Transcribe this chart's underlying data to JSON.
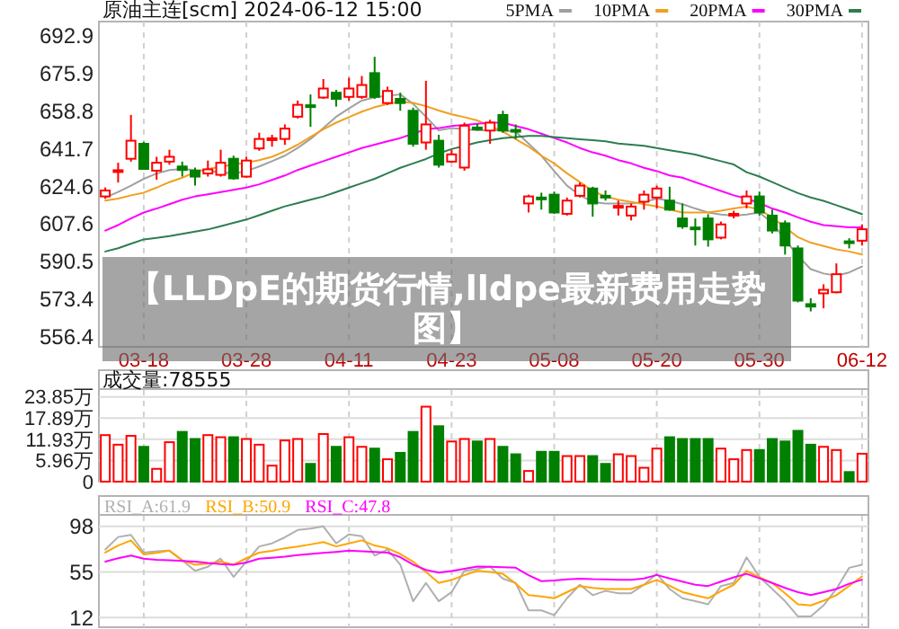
{
  "chart_data": [
    {
      "type": "candlestick",
      "title": "原油主连[scm] 2024-06-12 15:00",
      "categories": [
        null,
        null,
        null,
        "03-18",
        null,
        null,
        null,
        null,
        null,
        null,
        null,
        "03-28",
        null,
        null,
        null,
        null,
        null,
        null,
        null,
        "04-11",
        null,
        null,
        null,
        null,
        null,
        null,
        null,
        "04-23",
        null,
        null,
        null,
        null,
        null,
        null,
        null,
        "05-08",
        null,
        null,
        null,
        null,
        null,
        null,
        null,
        "05-20",
        null,
        null,
        null,
        null,
        null,
        null,
        null,
        "05-30",
        null,
        null,
        null,
        null,
        null,
        null,
        null,
        "06-12"
      ],
      "ohlc": [
        [
          620.0,
          624.1,
          618.9,
          622.7
        ],
        [
          631.5,
          635.3,
          626.3,
          631.9
        ],
        [
          637.1,
          657.0,
          635.8,
          645.3
        ],
        [
          643.9,
          644.8,
          632.3,
          632.5
        ],
        [
          631.7,
          638.0,
          627.6,
          635.3
        ],
        [
          635.8,
          641.2,
          634.4,
          638.0
        ],
        [
          633.6,
          635.8,
          629.0,
          632.0
        ],
        [
          631.7,
          633.1,
          624.9,
          629.0
        ],
        [
          630.4,
          636.3,
          629.0,
          632.3
        ],
        [
          629.8,
          641.2,
          629.0,
          635.3
        ],
        [
          637.1,
          638.5,
          627.6,
          628.2
        ],
        [
          629.0,
          638.0,
          628.5,
          636.3
        ],
        [
          641.8,
          648.9,
          640.7,
          646.1
        ],
        [
          645.9,
          648.0,
          642.6,
          646.4
        ],
        [
          646.1,
          652.7,
          643.4,
          650.8
        ],
        [
          656.2,
          663.5,
          655.4,
          661.6
        ],
        [
          661.4,
          666.3,
          651.6,
          660.8
        ],
        [
          664.9,
          673.3,
          664.3,
          669.0
        ],
        [
          667.1,
          668.4,
          660.8,
          664.3
        ],
        [
          665.2,
          673.9,
          663.5,
          669.0
        ],
        [
          665.2,
          674.7,
          664.3,
          670.6
        ],
        [
          676.0,
          683.4,
          664.3,
          665.2
        ],
        [
          662.4,
          669.8,
          661.6,
          667.9
        ],
        [
          664.3,
          667.1,
          658.9,
          662.4
        ],
        [
          658.9,
          660.3,
          642.6,
          643.9
        ],
        [
          644.5,
          672.5,
          641.2,
          652.7
        ],
        [
          645.3,
          648.0,
          633.1,
          634.4
        ],
        [
          635.8,
          641.2,
          635.3,
          639.1
        ],
        [
          633.1,
          653.5,
          631.7,
          652.1
        ],
        [
          651.3,
          652.9,
          649.9,
          651.0
        ],
        [
          649.9,
          654.8,
          643.9,
          653.5
        ],
        [
          657.0,
          658.9,
          648.9,
          649.9
        ],
        [
          650.2,
          652.7,
          646.1,
          649.4
        ],
        [
          616.8,
          620.8,
          612.7,
          620.0
        ],
        [
          619.5,
          621.7,
          614.0,
          618.9
        ],
        [
          620.8,
          622.2,
          612.1,
          612.7
        ],
        [
          612.1,
          619.5,
          611.3,
          618.1
        ],
        [
          620.3,
          626.3,
          619.5,
          624.9
        ],
        [
          623.6,
          624.4,
          610.8,
          616.8
        ],
        [
          620.3,
          622.7,
          618.1,
          619.8
        ],
        [
          615.1,
          618.1,
          611.3,
          615.7
        ],
        [
          611.3,
          616.8,
          609.1,
          615.4
        ],
        [
          617.6,
          622.7,
          614.0,
          620.8
        ],
        [
          619.5,
          624.9,
          614.6,
          623.6
        ],
        [
          618.1,
          624.4,
          613.5,
          614.0
        ],
        [
          610.0,
          616.8,
          605.3,
          606.4
        ],
        [
          605.9,
          610.0,
          597.7,
          605.3
        ],
        [
          610.0,
          611.9,
          597.2,
          600.5
        ],
        [
          601.3,
          608.6,
          600.5,
          607.3
        ],
        [
          611.6,
          613.5,
          610.0,
          612.1
        ],
        [
          616.8,
          622.7,
          614.6,
          620.0
        ],
        [
          620.0,
          622.2,
          611.3,
          612.7
        ],
        [
          611.3,
          614.0,
          603.2,
          604.5
        ],
        [
          607.8,
          609.1,
          593.6,
          597.7
        ],
        [
          596.4,
          597.7,
          571.9,
          572.7
        ],
        [
          571.1,
          573.8,
          567.8,
          570.0
        ],
        [
          576.0,
          580.1,
          569.2,
          577.6
        ],
        [
          576.5,
          589.6,
          576.0,
          584.7
        ],
        [
          599.6,
          601.0,
          596.4,
          598.8
        ],
        [
          599.9,
          607.3,
          597.7,
          605.1
        ]
      ],
      "colors": [
        "#ff0000",
        "#ff0000",
        "#ff0000",
        "#008000",
        "#ff0000",
        "#ff0000",
        "#008000",
        "#008000",
        "#ff0000",
        "#ff0000",
        "#008000",
        "#ff0000",
        "#ff0000",
        "#ff0000",
        "#ff0000",
        "#ff0000",
        "#008000",
        "#ff0000",
        "#008000",
        "#ff0000",
        "#ff0000",
        "#008000",
        "#ff0000",
        "#008000",
        "#008000",
        "#ff0000",
        "#008000",
        "#ff0000",
        "#ff0000",
        "#008000",
        "#ff0000",
        "#008000",
        "#008000",
        "#ff0000",
        "#008000",
        "#008000",
        "#ff0000",
        "#ff0000",
        "#008000",
        "#008000",
        "#ff0000",
        "#ff0000",
        "#ff0000",
        "#ff0000",
        "#008000",
        "#008000",
        "#008000",
        "#008000",
        "#ff0000",
        "#ff0000",
        "#ff0000",
        "#008000",
        "#008000",
        "#008000",
        "#008000",
        "#008000",
        "#ff0000",
        "#ff0000",
        "#008000",
        "#ff0000"
      ],
      "series": [
        {
          "name": "5PMA",
          "type": "line",
          "color": "#a0a0a0",
          "values": [
            619.5,
            622,
            624.9,
            628,
            630.4,
            632,
            632.5,
            632,
            631.7,
            631,
            630.4,
            631.5,
            633.6,
            636,
            638.5,
            642,
            646.1,
            651,
            656.2,
            660,
            663.5,
            665,
            665.7,
            666.3,
            662,
            656.2,
            650,
            651,
            650.5,
            650,
            650,
            650,
            649.4,
            644,
            638.5,
            631.5,
            624.9,
            620.5,
            617.5,
            616.8,
            616.8,
            616.8,
            617.5,
            619,
            618,
            616.5,
            614.5,
            612.7,
            611.8,
            611.3,
            611.8,
            612.7,
            608,
            600.5,
            593,
            587,
            585,
            584,
            585.5,
            588.2
          ]
        },
        {
          "name": "10PMA",
          "type": "line",
          "color": "#f0a020",
          "values": [
            618.1,
            619,
            620.5,
            621.7,
            624,
            626.5,
            628.5,
            631,
            632.5,
            633.5,
            634.5,
            635.3,
            636.5,
            638,
            640.5,
            643.5,
            647,
            650.5,
            653.5,
            656,
            658.5,
            660.5,
            662,
            663,
            662.5,
            661,
            659,
            657.3,
            656,
            654.5,
            652,
            649.5,
            646,
            642.6,
            638.5,
            635,
            630.5,
            626.5,
            622.5,
            620,
            618.5,
            617.5,
            616.5,
            615.5,
            614,
            612.7,
            612.7,
            612.7,
            613.5,
            614.5,
            615.4,
            614,
            610.5,
            606,
            601.5,
            599,
            597.5,
            596,
            595,
            593.6
          ]
        },
        {
          "name": "20PMA",
          "type": "line",
          "color": "#ff00ff",
          "values": [
            604.5,
            607,
            610,
            612.7,
            614.5,
            616.5,
            618.5,
            620,
            621,
            622,
            623,
            624,
            625.5,
            627.5,
            629.5,
            632,
            634,
            636,
            638,
            640,
            642,
            643.5,
            645,
            646.5,
            648.5,
            650.5,
            651,
            652,
            652.5,
            653,
            653.5,
            653.5,
            652,
            650.5,
            648.5,
            646.5,
            644.5,
            642,
            640,
            638.5,
            636.5,
            635,
            633,
            631.5,
            629.5,
            628.5,
            626.5,
            624.5,
            622.5,
            620.5,
            619,
            617,
            614.5,
            612.7,
            610.5,
            608.5,
            607,
            606.5,
            606,
            606
          ]
        },
        {
          "name": "30PMA",
          "type": "line",
          "color": "#2e7d4f",
          "values": [
            595,
            596.5,
            598.5,
            600.5,
            601.2,
            602,
            603,
            604,
            605,
            606.5,
            608,
            609.5,
            611.5,
            613.5,
            615.5,
            617,
            618.5,
            620,
            622,
            624,
            626,
            628,
            630.5,
            633,
            635,
            637,
            639.5,
            641.5,
            643,
            644.5,
            645.5,
            646.5,
            647,
            647.5,
            647.5,
            647,
            646.5,
            646,
            645.5,
            645,
            644,
            643.5,
            643,
            642,
            641,
            640,
            639,
            637.5,
            636,
            634.5,
            631,
            629,
            626.5,
            624,
            621.5,
            619.5,
            618,
            616,
            614,
            612
          ]
        }
      ],
      "ylim": [
        551.7,
        699.4
      ],
      "yticks": [
        556.4,
        573.4,
        590.5,
        607.6,
        624.6,
        641.7,
        658.8,
        675.9,
        692.9
      ],
      "grid": "x",
      "legend": "top right",
      "annotations": [
        "【LLDpE的期货行情,lldpe最新费用走势图】"
      ]
    },
    {
      "type": "bar",
      "title": "成交量:78555",
      "categories": [
        null,
        null,
        null,
        null,
        null,
        null,
        null,
        null,
        null,
        null,
        null,
        null,
        null,
        null,
        null,
        null,
        null,
        null,
        null,
        null,
        null,
        null,
        null,
        null,
        null,
        null,
        null,
        null,
        null,
        null,
        null,
        null,
        null,
        null,
        null,
        null,
        null,
        null,
        null,
        null,
        null,
        null,
        null,
        null,
        null,
        null,
        null,
        null,
        null,
        null,
        null,
        null,
        null,
        null,
        null,
        null,
        null,
        null,
        null,
        null
      ],
      "values": [
        13.1,
        10.4,
        12.9,
        9.8,
        3.6,
        11.1,
        14.0,
        12.0,
        13.1,
        12.5,
        12.5,
        12.0,
        10.4,
        4.5,
        11.6,
        12.0,
        5.0,
        13.4,
        9.8,
        12.5,
        9.8,
        9.3,
        6.3,
        8.1,
        14.0,
        21.1,
        15.6,
        11.3,
        12.0,
        11.3,
        12.0,
        9.8,
        7.7,
        3.0,
        8.4,
        8.4,
        7.2,
        7.2,
        7.2,
        5.0,
        7.7,
        7.2,
        3.9,
        9.3,
        12.5,
        12.0,
        12.0,
        12.0,
        9.3,
        6.3,
        8.9,
        8.9,
        12.0,
        11.3,
        14.3,
        10.4,
        9.8,
        8.9,
        2.7,
        7.86
      ],
      "colors": [
        "#ff0000",
        "#ff0000",
        "#ff0000",
        "#008000",
        "#ff0000",
        "#ff0000",
        "#008000",
        "#008000",
        "#ff0000",
        "#ff0000",
        "#008000",
        "#ff0000",
        "#ff0000",
        "#ff0000",
        "#ff0000",
        "#ff0000",
        "#008000",
        "#ff0000",
        "#008000",
        "#ff0000",
        "#ff0000",
        "#008000",
        "#ff0000",
        "#008000",
        "#008000",
        "#ff0000",
        "#008000",
        "#ff0000",
        "#ff0000",
        "#008000",
        "#ff0000",
        "#008000",
        "#008000",
        "#ff0000",
        "#008000",
        "#008000",
        "#ff0000",
        "#ff0000",
        "#008000",
        "#008000",
        "#ff0000",
        "#ff0000",
        "#ff0000",
        "#ff0000",
        "#008000",
        "#008000",
        "#008000",
        "#008000",
        "#ff0000",
        "#ff0000",
        "#ff0000",
        "#008000",
        "#008000",
        "#008000",
        "#008000",
        "#008000",
        "#ff0000",
        "#ff0000",
        "#008000",
        "#ff0000"
      ],
      "ylim": [
        0,
        25.8
      ],
      "yticks": [
        0,
        {
          "value": 5.96,
          "label": "5.96万"
        },
        {
          "value": 11.93,
          "label": "11.93万"
        },
        {
          "value": 17.89,
          "label": "17.89万"
        },
        {
          "value": 23.85,
          "label": "23.85万"
        }
      ],
      "grid": true,
      "tick_labels": "y"
    },
    {
      "type": "line",
      "categories": [
        null,
        null,
        null,
        null,
        null,
        null,
        null,
        null,
        null,
        null,
        null,
        null,
        null,
        null,
        null,
        null,
        null,
        null,
        null,
        null,
        null,
        null,
        null,
        null,
        null,
        null,
        null,
        null,
        null,
        null,
        null,
        null,
        null,
        null,
        null,
        null,
        null,
        null,
        null,
        null,
        null,
        null,
        null,
        null,
        null,
        null,
        null,
        null,
        null,
        null,
        null,
        null,
        null,
        null,
        null,
        null,
        null,
        null,
        null,
        null
      ],
      "series": [
        {
          "name": "RSI_A:61.9",
          "color": "#b0b0b0",
          "values": [
            76.2,
            88,
            90,
            73.3,
            74.5,
            75.1,
            66,
            56.1,
            60,
            67.6,
            50.4,
            65,
            79.1,
            82,
            87.7,
            94.6,
            96,
            98,
            82,
            90.5,
            88.8,
            70.5,
            76.2,
            62,
            27.5,
            44.7,
            27.5,
            36.1,
            56.1,
            57.9,
            60.2,
            48.7,
            44.7,
            18.9,
            18.9,
            14.3,
            30.3,
            43,
            33.2,
            37.2,
            35,
            35,
            43,
            53.3,
            39,
            30.3,
            27.5,
            24.6,
            41.8,
            44.7,
            68.8,
            50.4,
            39,
            27.5,
            13.2,
            13.2,
            23.5,
            39,
            59,
            61.9
          ]
        },
        {
          "name": "RSI_B:50.9",
          "color": "#ffa500",
          "values": [
            73.3,
            80,
            84.8,
            71.6,
            73,
            75.1,
            66,
            61.9,
            63,
            64.8,
            61.9,
            68,
            73.3,
            75,
            77.4,
            79,
            81,
            83.2,
            79.1,
            82,
            84.8,
            80,
            77.4,
            72,
            64.8,
            55,
            44.7,
            47.6,
            52,
            56.1,
            55,
            53.3,
            44,
            33.2,
            32,
            30.3,
            36,
            41.8,
            40,
            39,
            39,
            39,
            43,
            47.6,
            42,
            36.1,
            33,
            30.3,
            37,
            43,
            56.1,
            50,
            44.7,
            35,
            24.6,
            23.5,
            28,
            33.2,
            42,
            50.9
          ]
        },
        {
          "name": "RSI_C:47.8",
          "color": "#ff00ff",
          "values": [
            64.8,
            68,
            70.5,
            67.6,
            66.5,
            66,
            65.5,
            64.8,
            63.5,
            62.5,
            61.9,
            64,
            67.6,
            68.5,
            69.5,
            71,
            72,
            73,
            74,
            75.1,
            74.5,
            74,
            73.3,
            69,
            61.9,
            57,
            54.4,
            56,
            58,
            60.2,
            60,
            59.5,
            59,
            52,
            46.4,
            47,
            48,
            48.7,
            48.2,
            48,
            47.6,
            47.6,
            49,
            52.2,
            49,
            46,
            43,
            41.8,
            46,
            50,
            53.3,
            49,
            44.7,
            40,
            36,
            33.2,
            36,
            39,
            44,
            47.8
          ]
        }
      ],
      "ylim": [
        3,
        108
      ],
      "yticks": [
        12,
        55,
        98
      ],
      "grid": true,
      "legend": "top left",
      "tick_labels": "y"
    }
  ]
}
